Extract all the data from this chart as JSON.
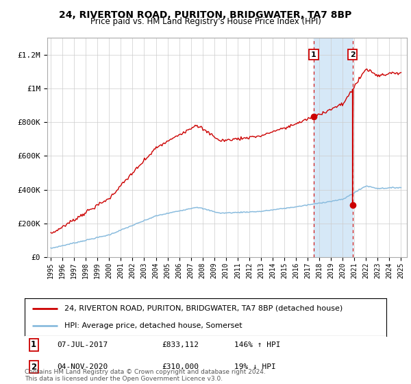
{
  "title": "24, RIVERTON ROAD, PURITON, BRIDGWATER, TA7 8BP",
  "subtitle": "Price paid vs. HM Land Registry's House Price Index (HPI)",
  "ylabel_ticks": [
    "£0",
    "£200K",
    "£400K",
    "£600K",
    "£800K",
    "£1M",
    "£1.2M"
  ],
  "ytick_values": [
    0,
    200000,
    400000,
    600000,
    800000,
    1000000,
    1200000
  ],
  "ylim": [
    0,
    1300000
  ],
  "xlim_start": 1994.7,
  "xlim_end": 2025.5,
  "xticks": [
    1995,
    1996,
    1997,
    1998,
    1999,
    2000,
    2001,
    2002,
    2003,
    2004,
    2005,
    2006,
    2007,
    2008,
    2009,
    2010,
    2011,
    2012,
    2013,
    2014,
    2015,
    2016,
    2017,
    2018,
    2019,
    2020,
    2021,
    2022,
    2023,
    2024,
    2025
  ],
  "hpi_color": "#8abcde",
  "price_color": "#cc0000",
  "transaction1_x": 2017.52,
  "transaction1_y": 833112,
  "transaction2_x": 2020.84,
  "transaction2_y": 310000,
  "shaded_color": "#d6e8f7",
  "legend_line1": "24, RIVERTON ROAD, PURITON, BRIDGWATER, TA7 8BP (detached house)",
  "legend_line2": "HPI: Average price, detached house, Somerset",
  "table_row1": [
    "1",
    "07-JUL-2017",
    "£833,112",
    "146% ↑ HPI"
  ],
  "table_row2": [
    "2",
    "04-NOV-2020",
    "£310,000",
    "19% ↓ HPI"
  ],
  "footer": "Contains HM Land Registry data © Crown copyright and database right 2024.\nThis data is licensed under the Open Government Licence v3.0.",
  "bg_color": "#ffffff",
  "grid_color": "#cccccc"
}
